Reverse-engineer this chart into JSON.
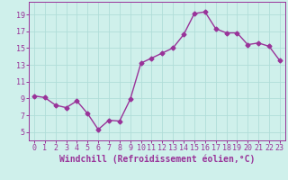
{
  "x": [
    0,
    1,
    2,
    3,
    4,
    5,
    6,
    7,
    8,
    9,
    10,
    11,
    12,
    13,
    14,
    15,
    16,
    17,
    18,
    19,
    20,
    21,
    22,
    23
  ],
  "y": [
    9.3,
    9.1,
    8.2,
    7.9,
    8.7,
    7.2,
    5.3,
    6.4,
    6.3,
    8.9,
    13.2,
    13.8,
    14.4,
    15.0,
    16.6,
    19.1,
    19.3,
    17.3,
    16.8,
    16.8,
    15.4,
    15.6,
    15.2,
    13.5
  ],
  "line_color": "#993399",
  "marker": "D",
  "markersize": 2.5,
  "linewidth": 1.0,
  "xlabel": "Windchill (Refroidissement éolien,°C)",
  "xlabel_fontsize": 7.0,
  "ylim": [
    4,
    20.5
  ],
  "xlim": [
    -0.5,
    23.5
  ],
  "yticks": [
    5,
    7,
    9,
    11,
    13,
    15,
    17,
    19
  ],
  "xticks": [
    0,
    1,
    2,
    3,
    4,
    5,
    6,
    7,
    8,
    9,
    10,
    11,
    12,
    13,
    14,
    15,
    16,
    17,
    18,
    19,
    20,
    21,
    22,
    23
  ],
  "tick_fontsize": 6.0,
  "bg_color": "#cff0eb",
  "grid_color": "#b0ddd8",
  "spine_color": "#993399",
  "label_color": "#993399",
  "tick_color": "#993399"
}
